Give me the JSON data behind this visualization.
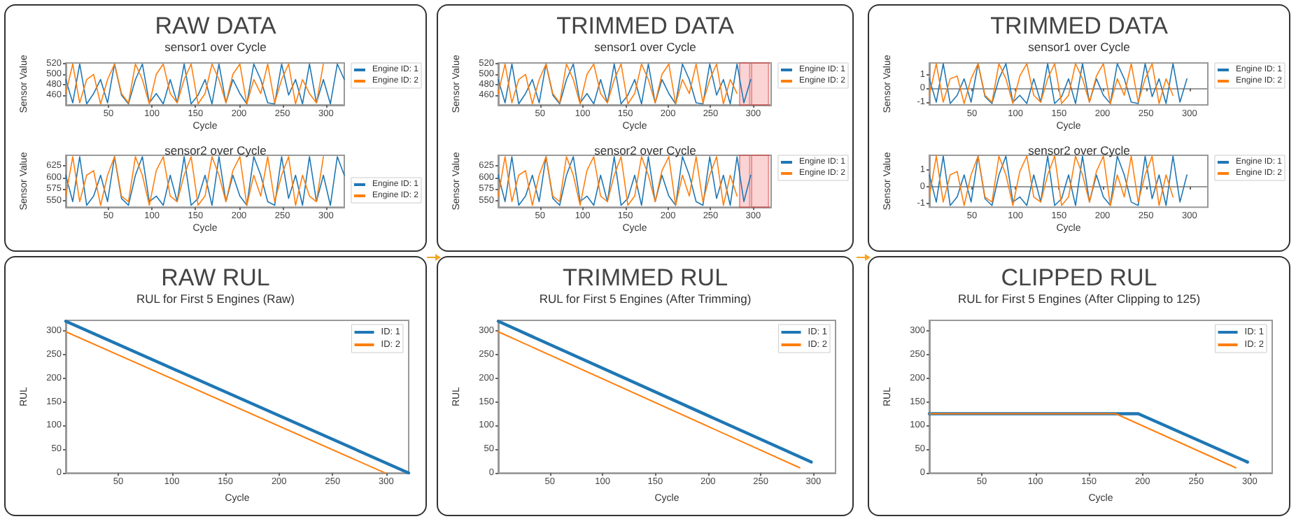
{
  "chart_data": [
    {
      "type": "line",
      "title": "RAW DATA",
      "subtitle": "sensor1 over Cycle",
      "xlabel": "Cycle",
      "ylabel": "Sensor Value",
      "x": [
        1,
        9,
        17,
        25,
        33,
        41,
        49,
        57,
        65,
        73,
        81,
        89,
        97,
        105,
        113,
        121,
        129,
        137,
        145,
        153,
        161,
        169,
        177,
        185,
        193,
        201,
        209,
        217,
        225,
        233,
        241,
        249,
        257,
        265,
        273,
        281,
        289,
        297,
        305,
        313,
        321
      ],
      "xlim": [
        1,
        321
      ],
      "xticks": [
        50,
        100,
        150,
        200,
        250,
        300
      ],
      "ylim": [
        441,
        522
      ],
      "yticks": [
        460,
        480,
        500,
        520
      ],
      "legend": "top right",
      "marker": "none",
      "line_style": "solid",
      "series": [
        {
          "name": "Engine ID: 1",
          "color": "#1f77b4",
          "values": [
            490,
            445,
            520,
            443,
            463,
            490,
            445,
            520,
            460,
            443,
            490,
            520,
            445,
            463,
            443,
            490,
            445,
            520,
            443,
            460,
            490,
            443,
            520,
            445,
            490,
            463,
            443,
            520,
            490,
            445,
            443,
            520,
            460,
            490,
            443,
            520,
            445,
            490,
            443,
            520,
            490
          ]
        },
        {
          "name": "Engine ID: 2",
          "color": "#ff7f0e",
          "values": [
            463,
            520,
            445,
            490,
            500,
            443,
            490,
            520,
            463,
            445,
            520,
            490,
            443,
            500,
            520,
            463,
            445,
            490,
            520,
            443,
            463,
            520,
            490,
            445,
            500,
            520,
            443,
            490,
            463,
            520,
            445,
            490,
            520,
            443,
            490,
            463,
            445,
            520,
            null,
            null,
            null
          ]
        }
      ]
    },
    {
      "type": "line",
      "title": "sensor2 over Cycle",
      "xlabel": "Cycle",
      "ylabel": "Sensor Value",
      "x": [
        1,
        9,
        17,
        25,
        33,
        41,
        49,
        57,
        65,
        73,
        81,
        89,
        97,
        105,
        113,
        121,
        129,
        137,
        145,
        153,
        161,
        169,
        177,
        185,
        193,
        201,
        209,
        217,
        225,
        233,
        241,
        249,
        257,
        265,
        273,
        281,
        289,
        297,
        305,
        313,
        321
      ],
      "xlim": [
        1,
        321
      ],
      "xticks": [
        50,
        100,
        150,
        200,
        250,
        300
      ],
      "ylim": [
        536,
        648
      ],
      "yticks": [
        550,
        575,
        600,
        625
      ],
      "legend": "right",
      "marker": "none",
      "line_style": "solid",
      "series": [
        {
          "name": "Engine ID: 1",
          "color": "#1f77b4",
          "values": [
            605,
            548,
            645,
            540,
            560,
            605,
            548,
            645,
            555,
            540,
            605,
            645,
            548,
            560,
            540,
            605,
            548,
            645,
            540,
            555,
            605,
            540,
            645,
            548,
            605,
            560,
            540,
            645,
            605,
            548,
            540,
            645,
            555,
            605,
            540,
            645,
            548,
            605,
            540,
            645,
            605
          ]
        },
        {
          "name": "Engine ID: 2",
          "color": "#ff7f0e",
          "values": [
            560,
            645,
            548,
            605,
            615,
            540,
            605,
            645,
            560,
            548,
            645,
            605,
            540,
            615,
            645,
            560,
            548,
            605,
            645,
            540,
            560,
            645,
            605,
            548,
            615,
            645,
            540,
            605,
            560,
            645,
            548,
            605,
            645,
            540,
            605,
            560,
            548,
            645,
            null,
            null,
            null
          ]
        }
      ]
    },
    {
      "type": "line",
      "title": "TRIMMED DATA",
      "subtitle": "sensor1 over Cycle",
      "xlabel": "Cycle",
      "ylabel": "Sensor Value",
      "x": [
        1,
        9,
        17,
        25,
        33,
        41,
        49,
        57,
        65,
        73,
        81,
        89,
        97,
        105,
        113,
        121,
        129,
        137,
        145,
        153,
        161,
        169,
        177,
        185,
        193,
        201,
        209,
        217,
        225,
        233,
        241,
        249,
        257,
        265,
        273,
        281,
        289,
        297
      ],
      "xlim": [
        1,
        321
      ],
      "xticks": [
        50,
        100,
        150,
        200,
        250,
        300
      ],
      "ylim": [
        441,
        522
      ],
      "yticks": [
        460,
        480,
        500,
        520
      ],
      "legend": "top right",
      "marker": "none",
      "line_style": "solid",
      "bands": [
        {
          "axis": "x",
          "from": 284,
          "to": 296,
          "color": "#f4a0a0"
        },
        {
          "axis": "x",
          "from": 298,
          "to": 318,
          "color": "#f4a0a0"
        }
      ],
      "series": [
        {
          "name": "Engine ID: 1",
          "color": "#1f77b4",
          "values": [
            490,
            445,
            520,
            443,
            463,
            490,
            445,
            520,
            460,
            443,
            490,
            520,
            445,
            463,
            443,
            490,
            445,
            520,
            443,
            460,
            490,
            443,
            520,
            445,
            490,
            463,
            443,
            520,
            490,
            445,
            443,
            520,
            460,
            490,
            443,
            520,
            445,
            490
          ]
        },
        {
          "name": "Engine ID: 2",
          "color": "#ff7f0e",
          "values": [
            463,
            520,
            445,
            490,
            500,
            443,
            490,
            520,
            463,
            445,
            520,
            490,
            443,
            500,
            520,
            463,
            445,
            490,
            520,
            443,
            463,
            520,
            490,
            445,
            500,
            520,
            443,
            490,
            463,
            520,
            445,
            490,
            520,
            443,
            490,
            463,
            null,
            null
          ]
        }
      ]
    },
    {
      "type": "line",
      "title": "sensor2 over Cycle",
      "xlabel": "Cycle",
      "ylabel": "Sensor Value",
      "x": [
        1,
        9,
        17,
        25,
        33,
        41,
        49,
        57,
        65,
        73,
        81,
        89,
        97,
        105,
        113,
        121,
        129,
        137,
        145,
        153,
        161,
        169,
        177,
        185,
        193,
        201,
        209,
        217,
        225,
        233,
        241,
        249,
        257,
        265,
        273,
        281,
        289,
        297
      ],
      "xlim": [
        1,
        321
      ],
      "xticks": [
        50,
        100,
        150,
        200,
        250,
        300
      ],
      "ylim": [
        536,
        648
      ],
      "yticks": [
        550,
        575,
        600,
        625
      ],
      "legend": "top right",
      "marker": "none",
      "line_style": "solid",
      "bands": [
        {
          "axis": "x",
          "from": 284,
          "to": 296,
          "color": "#f4a0a0"
        },
        {
          "axis": "x",
          "from": 298,
          "to": 318,
          "color": "#f4a0a0"
        }
      ],
      "series": [
        {
          "name": "Engine ID: 1",
          "color": "#1f77b4",
          "values": [
            605,
            548,
            645,
            540,
            560,
            605,
            548,
            645,
            555,
            540,
            605,
            645,
            548,
            560,
            540,
            605,
            548,
            645,
            540,
            555,
            605,
            540,
            645,
            548,
            605,
            560,
            540,
            645,
            605,
            548,
            540,
            645,
            555,
            605,
            540,
            645,
            548,
            605
          ]
        },
        {
          "name": "Engine ID: 2",
          "color": "#ff7f0e",
          "values": [
            560,
            645,
            548,
            605,
            615,
            540,
            605,
            645,
            560,
            548,
            645,
            605,
            540,
            615,
            645,
            560,
            548,
            605,
            645,
            540,
            560,
            645,
            605,
            548,
            615,
            645,
            540,
            605,
            560,
            645,
            548,
            605,
            645,
            540,
            605,
            560,
            null,
            null
          ]
        }
      ]
    },
    {
      "type": "line",
      "title": "TRIMMED DATA",
      "subtitle": "sensor1 over Cycle",
      "xlabel": "Cycle",
      "ylabel": "Sensor Value",
      "x": [
        1,
        9,
        17,
        25,
        33,
        41,
        49,
        57,
        65,
        73,
        81,
        89,
        97,
        105,
        113,
        121,
        129,
        137,
        145,
        153,
        161,
        169,
        177,
        185,
        193,
        201,
        209,
        217,
        225,
        233,
        241,
        249,
        257,
        265,
        273,
        281,
        289,
        297
      ],
      "xlim": [
        1,
        321
      ],
      "xticks": [
        50,
        100,
        150,
        200,
        250,
        300
      ],
      "ylim": [
        -1.2,
        1.85
      ],
      "yticks": [
        -1,
        0,
        1
      ],
      "legend": "top right",
      "marker": "none",
      "line_style": "solid",
      "series": [
        {
          "name": "Engine ID: 1",
          "color": "#1f77b4",
          "values": [
            0.7,
            -1.0,
            1.8,
            -1.1,
            -0.5,
            0.7,
            -1.0,
            1.8,
            -0.6,
            -1.1,
            0.7,
            1.8,
            -1.0,
            -0.5,
            -1.1,
            0.7,
            -1.0,
            1.8,
            -1.1,
            -0.6,
            0.7,
            -1.1,
            1.8,
            -1.0,
            0.7,
            -0.5,
            -1.1,
            1.8,
            0.7,
            -1.0,
            -1.1,
            1.8,
            -0.6,
            0.7,
            -1.1,
            1.8,
            -1.0,
            0.7
          ]
        },
        {
          "name": "Engine ID: 2",
          "color": "#ff7f0e",
          "values": [
            -0.5,
            1.8,
            -1.0,
            0.7,
            0.9,
            -1.1,
            0.7,
            1.8,
            -0.5,
            -1.0,
            1.8,
            0.7,
            -1.1,
            0.9,
            1.8,
            -0.5,
            -1.0,
            0.7,
            1.8,
            -1.1,
            -0.5,
            1.8,
            0.7,
            -1.0,
            0.9,
            1.8,
            -1.1,
            0.7,
            -0.5,
            1.8,
            -1.0,
            0.7,
            1.8,
            -1.1,
            0.7,
            -0.5,
            null,
            null
          ]
        }
      ]
    },
    {
      "type": "line",
      "title": "sensor2 over Cycle",
      "xlabel": "Cycle",
      "ylabel": "Sensor Value",
      "x": [
        1,
        9,
        17,
        25,
        33,
        41,
        49,
        57,
        65,
        73,
        81,
        89,
        97,
        105,
        113,
        121,
        129,
        137,
        145,
        153,
        161,
        169,
        177,
        185,
        193,
        201,
        209,
        217,
        225,
        233,
        241,
        249,
        257,
        265,
        273,
        281,
        289,
        297
      ],
      "xlim": [
        1,
        321
      ],
      "xticks": [
        50,
        100,
        150,
        200,
        250,
        300
      ],
      "ylim": [
        -1.2,
        1.85
      ],
      "yticks": [
        -1,
        0,
        1
      ],
      "legend": "top right",
      "marker": "none",
      "line_style": "solid",
      "series": [
        {
          "name": "Engine ID: 1",
          "color": "#1f77b4",
          "values": [
            0.7,
            -0.9,
            1.8,
            -1.1,
            -0.6,
            0.7,
            -0.9,
            1.8,
            -0.7,
            -1.1,
            0.7,
            1.8,
            -0.9,
            -0.6,
            -1.1,
            0.7,
            -0.9,
            1.8,
            -1.1,
            -0.7,
            0.7,
            -1.1,
            1.8,
            -0.9,
            0.7,
            -0.6,
            -1.1,
            1.8,
            0.7,
            -0.9,
            -1.1,
            1.8,
            -0.7,
            0.7,
            -1.1,
            1.8,
            -0.9,
            0.7
          ]
        },
        {
          "name": "Engine ID: 2",
          "color": "#ff7f0e",
          "values": [
            -0.6,
            1.8,
            -0.9,
            0.7,
            0.9,
            -1.1,
            0.7,
            1.8,
            -0.6,
            -0.9,
            1.8,
            0.7,
            -1.1,
            0.9,
            1.8,
            -0.6,
            -0.9,
            0.7,
            1.8,
            -1.1,
            -0.6,
            1.8,
            0.7,
            -0.9,
            0.9,
            1.8,
            -1.1,
            0.7,
            -0.6,
            1.8,
            -0.9,
            0.7,
            1.8,
            -1.1,
            0.7,
            -0.6,
            null,
            null
          ]
        }
      ]
    },
    {
      "type": "line",
      "title": "RAW RUL",
      "subtitle": "RUL for First 5 Engines (Raw)",
      "xlabel": "Cycle",
      "ylabel": "RUL",
      "xlim": [
        1,
        321
      ],
      "xticks": [
        50,
        100,
        150,
        200,
        250,
        300
      ],
      "ylim": [
        0,
        322
      ],
      "yticks": [
        0,
        50,
        100,
        150,
        200,
        250,
        300
      ],
      "legend": "top right",
      "marker": "none",
      "line_style": "solid",
      "series": [
        {
          "name": "ID: 1",
          "color": "#1f77b4",
          "x": [
            1,
            321
          ],
          "values": [
            320,
            0
          ]
        },
        {
          "name": "ID: 2",
          "color": "#ff7f0e",
          "x": [
            1,
            299
          ],
          "values": [
            298,
            0
          ]
        }
      ]
    },
    {
      "type": "line",
      "title": "TRIMMED RUL",
      "subtitle": "RUL for First 5 Engines (After Trimming)",
      "xlabel": "Cycle",
      "ylabel": "RUL",
      "xlim": [
        1,
        321
      ],
      "xticks": [
        50,
        100,
        150,
        200,
        250,
        300
      ],
      "ylim": [
        0,
        322
      ],
      "yticks": [
        0,
        50,
        100,
        150,
        200,
        250,
        300
      ],
      "legend": "top right",
      "marker": "none",
      "line_style": "solid",
      "series": [
        {
          "name": "ID: 1",
          "color": "#1f77b4",
          "x": [
            1,
            298
          ],
          "values": [
            320,
            23
          ]
        },
        {
          "name": "ID: 2",
          "color": "#ff7f0e",
          "x": [
            1,
            287
          ],
          "values": [
            298,
            11
          ]
        }
      ]
    },
    {
      "type": "line",
      "title": "CLIPPED RUL",
      "subtitle": "RUL for First 5 Engines (After Clipping to 125)",
      "xlabel": "Cycle",
      "ylabel": "RUL",
      "xlim": [
        1,
        321
      ],
      "xticks": [
        50,
        100,
        150,
        200,
        250,
        300
      ],
      "ylim": [
        0,
        322
      ],
      "yticks": [
        0,
        50,
        100,
        150,
        200,
        250,
        300
      ],
      "legend": "top right",
      "marker": "none",
      "line_style": "solid",
      "series": [
        {
          "name": "ID: 1",
          "color": "#1f77b4",
          "x": [
            1,
            196,
            298
          ],
          "values": [
            125,
            125,
            23
          ]
        },
        {
          "name": "ID: 2",
          "color": "#ff7f0e",
          "x": [
            1,
            175,
            287
          ],
          "values": [
            125,
            125,
            11
          ]
        }
      ]
    }
  ]
}
